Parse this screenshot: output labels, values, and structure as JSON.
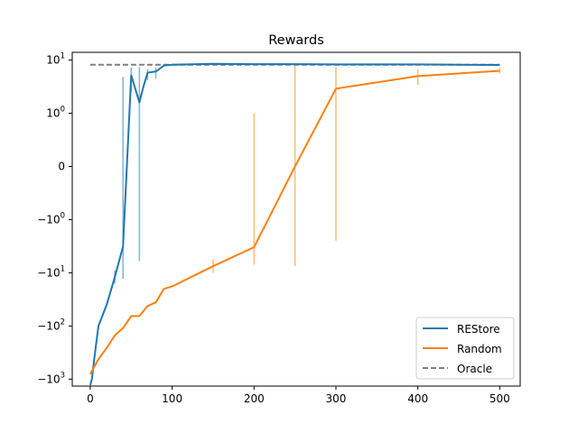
{
  "chart_data": {
    "type": "line",
    "title": "Rewards",
    "xlabel": "",
    "ylabel": "",
    "xlim": [
      -22,
      525
    ],
    "ylim": [
      -1350,
      14
    ],
    "yscale": "symlog",
    "x_ticks": [
      0,
      100,
      200,
      300,
      400,
      500
    ],
    "x_tick_labels": [
      "0",
      "100",
      "200",
      "300",
      "400",
      "500"
    ],
    "y_ticks": [
      -1000,
      -100,
      -10,
      -1,
      0,
      1,
      10
    ],
    "y_tick_labels": [
      {
        "base": "−10",
        "exp": "3"
      },
      {
        "base": "−10",
        "exp": "2"
      },
      {
        "base": "−10",
        "exp": "1"
      },
      {
        "base": "−10",
        "exp": "0"
      },
      {
        "base": "0",
        "exp": ""
      },
      {
        "base": "10",
        "exp": "0"
      },
      {
        "base": "10",
        "exp": "1"
      }
    ],
    "grid": false,
    "legend_position": "lower-right",
    "series": [
      {
        "name": "REStore",
        "color": "#1f77b4",
        "style": "solid",
        "x": [
          0,
          2,
          5,
          10,
          20,
          30,
          40,
          50,
          60,
          65,
          70,
          80,
          90,
          100,
          150,
          200,
          250,
          300,
          400,
          500
        ],
        "y": [
          -1300,
          -1000,
          -400,
          -100,
          -40,
          -12,
          -3.2,
          5.2,
          1.6,
          3.2,
          5.8,
          6.1,
          7.9,
          8.2,
          8.5,
          8.4,
          8.4,
          8.3,
          8.3,
          8.1
        ],
        "err_low": [
          null,
          null,
          null,
          null,
          null,
          -9,
          -13,
          2.5,
          -6,
          null,
          4.2,
          4.5,
          null,
          null,
          null,
          null,
          null,
          null,
          null,
          null
        ],
        "err_high": [
          null,
          null,
          null,
          null,
          null,
          -16,
          4.8,
          7.2,
          7.3,
          null,
          6.8,
          7.3,
          null,
          null,
          null,
          null,
          null,
          null,
          null,
          null
        ]
      },
      {
        "name": "Random",
        "color": "#ff7f0e",
        "style": "solid",
        "x": [
          0,
          10,
          20,
          30,
          40,
          50,
          60,
          70,
          80,
          90,
          100,
          150,
          200,
          250,
          300,
          400,
          500
        ],
        "y": [
          -800,
          -420,
          -260,
          -150,
          -110,
          -65,
          -65,
          -42,
          -36,
          -20,
          -18,
          -7.5,
          -3.3,
          0,
          2.9,
          5,
          6.3
        ],
        "err_low": [
          null,
          null,
          null,
          null,
          null,
          null,
          null,
          null,
          null,
          null,
          null,
          -10,
          -7,
          -7.5,
          -2.5,
          3.4,
          5.6
        ],
        "err_high": [
          null,
          null,
          null,
          null,
          null,
          null,
          null,
          null,
          null,
          null,
          null,
          -5.5,
          1,
          8.7,
          7.3,
          6.8,
          7.1
        ]
      },
      {
        "name": "Oracle",
        "color": "#7f7f7f",
        "style": "dashed",
        "x": [
          0,
          100,
          200,
          300,
          400,
          500
        ],
        "y": [
          8.2,
          8.2,
          8.2,
          8.2,
          8.2,
          8.2
        ]
      }
    ]
  }
}
